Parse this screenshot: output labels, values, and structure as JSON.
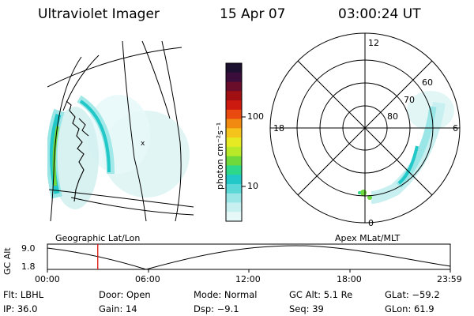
{
  "header": {
    "instrument": "Ultraviolet Imager",
    "date": "15 Apr 07",
    "time": "03:00:24 UT"
  },
  "colorbar": {
    "label": "photon cm⁻²s⁻¹",
    "ticks": [
      "100",
      "10"
    ],
    "colors": [
      "#1b1030",
      "#3a0d3a",
      "#6a0d2a",
      "#a01012",
      "#cc1a10",
      "#e84a10",
      "#f08a10",
      "#f4c31c",
      "#e6ea22",
      "#b8ea2a",
      "#6fd83a",
      "#2ed88a",
      "#22c8c8",
      "#5ad8d8",
      "#9ae6e6",
      "#c8f0f0",
      "#e6f8f8"
    ]
  },
  "geo_panel": {
    "label": "Geographic Lat/Lon"
  },
  "polar_panel": {
    "label": "Apex MLat/MLT",
    "mlt_labels": [
      "12",
      "18",
      "6",
      "0"
    ],
    "lat_labels": [
      "60",
      "70",
      "80"
    ]
  },
  "timeline": {
    "ylabel": "GC Alt",
    "y_ticks": [
      "9.0",
      "1.8"
    ],
    "x_ticks": [
      "00:00",
      "06:00",
      "12:00",
      "18:00",
      "23:59"
    ],
    "marker_time_fraction": 0.125
  },
  "status": {
    "flt": "Flt: LBHL",
    "door": "Door: Open",
    "mode": "Mode: Normal",
    "gc_alt": "GC Alt: 5.1 Re",
    "glat": "GLat: −59.2",
    "ip": "IP: 36.0",
    "gain": "Gain: 14",
    "dsp": "Dsp:   −9.1",
    "seq": "Seq: 39",
    "glon": "GLon:  61.9"
  }
}
